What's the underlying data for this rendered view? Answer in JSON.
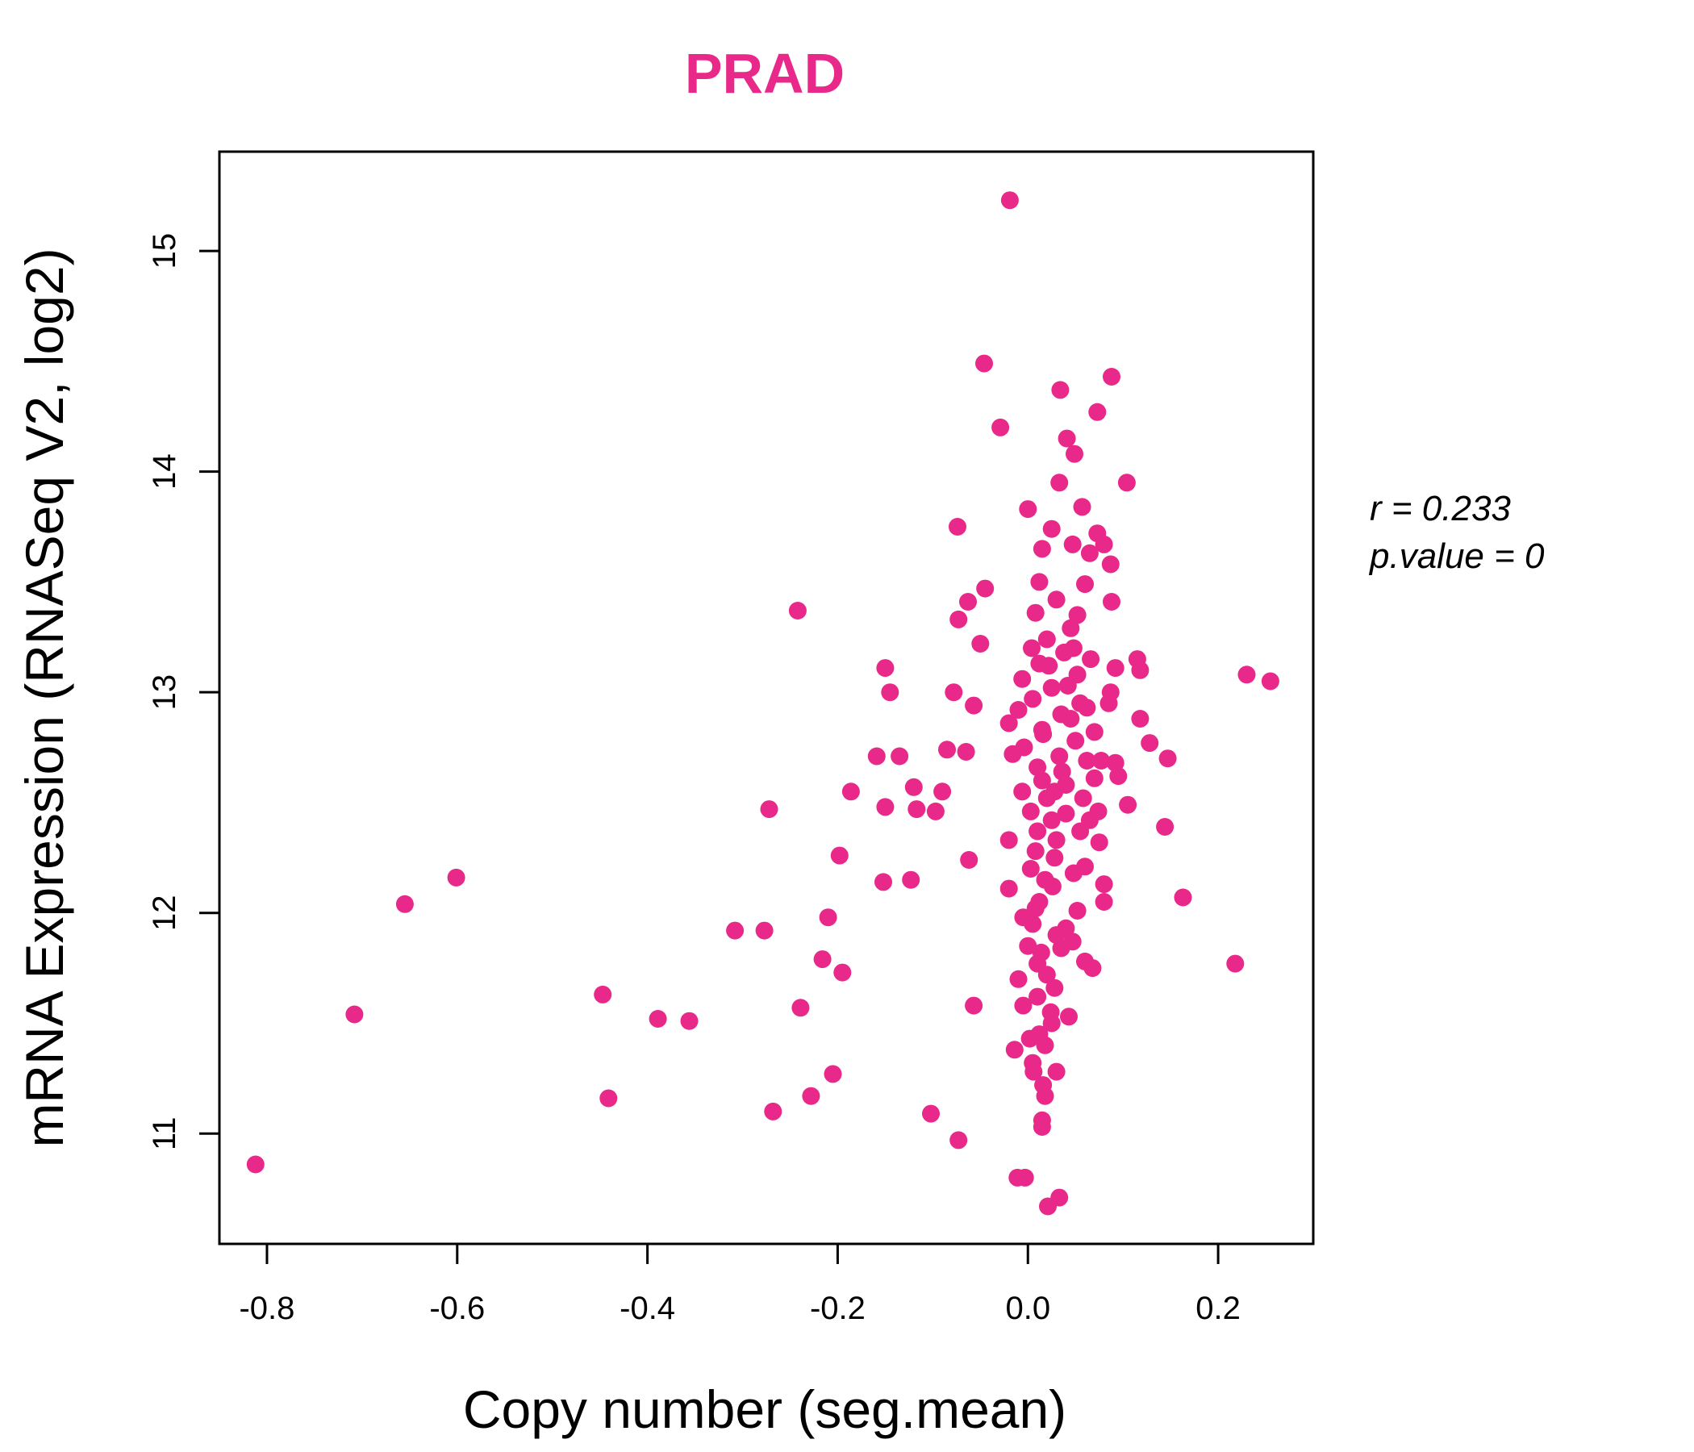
{
  "chart_data": {
    "type": "scatter",
    "title": "PRAD",
    "xlabel": "Copy number (seg.mean)",
    "ylabel": "mRNA Expression (RNASeq V2, log2)",
    "xlim": [
      -0.85,
      0.3
    ],
    "ylim": [
      10.5,
      15.45
    ],
    "x_ticks": [
      -0.8,
      -0.6,
      -0.4,
      -0.2,
      0.0,
      0.2
    ],
    "x_tick_labels": [
      "-0.8",
      "-0.6",
      "-0.4",
      "-0.2",
      "0.0",
      "0.2"
    ],
    "y_ticks": [
      11,
      12,
      13,
      14,
      15
    ],
    "y_tick_labels": [
      "11",
      "12",
      "13",
      "14",
      "15"
    ],
    "annotation": {
      "r_label": "r = 0.233",
      "p_label": "p.value = 0"
    },
    "point_color": "#E8298A",
    "title_color": "#E8298A",
    "points": [
      [
        -0.019,
        15.23
      ],
      [
        -0.046,
        14.49
      ],
      [
        0.088,
        14.43
      ],
      [
        0.034,
        14.37
      ],
      [
        -0.029,
        14.2
      ],
      [
        0.073,
        14.27
      ],
      [
        0.041,
        14.15
      ],
      [
        0.049,
        14.08
      ],
      [
        0.033,
        13.95
      ],
      [
        0.104,
        13.95
      ],
      [
        0.0,
        13.83
      ],
      [
        0.057,
        13.84
      ],
      [
        -0.074,
        13.75
      ],
      [
        0.025,
        13.74
      ],
      [
        0.073,
        13.72
      ],
      [
        0.047,
        13.67
      ],
      [
        0.08,
        13.67
      ],
      [
        0.015,
        13.65
      ],
      [
        0.065,
        13.63
      ],
      [
        0.087,
        13.58
      ],
      [
        -0.242,
        13.37
      ],
      [
        -0.045,
        13.47
      ],
      [
        0.012,
        13.5
      ],
      [
        0.06,
        13.49
      ],
      [
        -0.063,
        13.41
      ],
      [
        0.088,
        13.41
      ],
      [
        -0.073,
        13.33
      ],
      [
        0.052,
        13.35
      ],
      [
        -0.05,
        13.22
      ],
      [
        0.115,
        13.15
      ],
      [
        0.23,
        13.08
      ],
      [
        0.255,
        13.05
      ],
      [
        0.118,
        13.1
      ],
      [
        -0.15,
        13.11
      ],
      [
        -0.145,
        13.0
      ],
      [
        -0.078,
        13.0
      ],
      [
        -0.057,
        12.94
      ],
      [
        0.092,
        13.11
      ],
      [
        0.087,
        13.0
      ],
      [
        0.118,
        12.88
      ],
      [
        0.128,
        12.77
      ],
      [
        0.147,
        12.7
      ],
      [
        -0.159,
        12.71
      ],
      [
        -0.135,
        12.71
      ],
      [
        -0.085,
        12.74
      ],
      [
        -0.065,
        12.73
      ],
      [
        0.077,
        12.69
      ],
      [
        0.092,
        12.68
      ],
      [
        -0.186,
        12.55
      ],
      [
        -0.12,
        12.57
      ],
      [
        -0.09,
        12.55
      ],
      [
        -0.272,
        12.47
      ],
      [
        -0.15,
        12.48
      ],
      [
        -0.117,
        12.47
      ],
      [
        -0.097,
        12.46
      ],
      [
        0.105,
        12.49
      ],
      [
        0.144,
        12.39
      ],
      [
        -0.198,
        12.26
      ],
      [
        -0.062,
        12.24
      ],
      [
        0.08,
        12.13
      ],
      [
        -0.152,
        12.14
      ],
      [
        -0.123,
        12.15
      ],
      [
        0.163,
        12.07
      ],
      [
        -0.601,
        12.16
      ],
      [
        -0.655,
        12.04
      ],
      [
        -0.21,
        11.98
      ],
      [
        -0.308,
        11.92
      ],
      [
        -0.277,
        11.92
      ],
      [
        -0.216,
        11.79
      ],
      [
        -0.195,
        11.73
      ],
      [
        0.06,
        11.78
      ],
      [
        0.068,
        11.75
      ],
      [
        0.218,
        11.77
      ],
      [
        -0.447,
        11.63
      ],
      [
        -0.239,
        11.57
      ],
      [
        -0.057,
        11.58
      ],
      [
        -0.708,
        11.54
      ],
      [
        -0.389,
        11.52
      ],
      [
        -0.356,
        11.51
      ],
      [
        -0.005,
        11.58
      ],
      [
        0.043,
        11.53
      ],
      [
        0.025,
        11.5
      ],
      [
        -0.014,
        11.38
      ],
      [
        0.03,
        11.28
      ],
      [
        -0.205,
        11.27
      ],
      [
        -0.441,
        11.16
      ],
      [
        -0.228,
        11.17
      ],
      [
        -0.268,
        11.1
      ],
      [
        -0.102,
        11.09
      ],
      [
        0.015,
        11.06
      ],
      [
        0.015,
        11.03
      ],
      [
        -0.073,
        10.97
      ],
      [
        -0.812,
        10.86
      ],
      [
        -0.011,
        10.8
      ],
      [
        -0.003,
        10.8
      ],
      [
        0.033,
        10.71
      ],
      [
        0.021,
        10.67
      ],
      [
        0.005,
        11.32
      ],
      [
        0.016,
        11.22
      ],
      [
        0.002,
        11.43
      ],
      [
        0.018,
        11.4
      ],
      [
        0.01,
        11.62
      ],
      [
        -0.01,
        11.7
      ],
      [
        0.028,
        11.66
      ],
      [
        0.035,
        11.84
      ],
      [
        0.04,
        11.93
      ],
      [
        0.005,
        11.95
      ],
      [
        0.012,
        12.05
      ],
      [
        0.026,
        12.12
      ],
      [
        0.048,
        12.18
      ],
      [
        0.06,
        12.21
      ],
      [
        0.008,
        12.28
      ],
      [
        0.03,
        12.33
      ],
      [
        0.055,
        12.37
      ],
      [
        0.065,
        12.42
      ],
      [
        0.003,
        12.46
      ],
      [
        0.02,
        12.52
      ],
      [
        0.04,
        12.58
      ],
      [
        0.07,
        12.61
      ],
      [
        0.01,
        12.66
      ],
      [
        0.033,
        12.71
      ],
      [
        0.05,
        12.78
      ],
      [
        0.015,
        12.83
      ],
      [
        0.045,
        12.88
      ],
      [
        0.062,
        12.93
      ],
      [
        0.005,
        12.97
      ],
      [
        0.025,
        13.02
      ],
      [
        0.052,
        13.08
      ],
      [
        0.012,
        13.13
      ],
      [
        0.038,
        13.18
      ],
      [
        0.02,
        13.24
      ],
      [
        0.045,
        13.29
      ],
      [
        0.008,
        13.36
      ],
      [
        0.03,
        13.42
      ],
      [
        -0.006,
        13.06
      ],
      [
        -0.02,
        12.86
      ],
      [
        -0.016,
        12.72
      ],
      [
        -0.02,
        12.33
      ],
      [
        -0.02,
        12.11
      ],
      [
        -0.006,
        12.55
      ],
      [
        -0.01,
        12.92
      ],
      [
        0.075,
        12.32
      ],
      [
        0.08,
        12.05
      ],
      [
        0.07,
        12.82
      ],
      [
        0.085,
        12.95
      ],
      [
        0.095,
        12.62
      ],
      [
        0.074,
        12.46
      ],
      [
        0.052,
        12.01
      ],
      [
        0.047,
        11.87
      ],
      [
        0.01,
        11.77
      ],
      [
        0.0,
        11.85
      ],
      [
        -0.005,
        11.98
      ],
      [
        0.003,
        12.2
      ],
      [
        0.025,
        12.42
      ],
      [
        0.015,
        12.6
      ],
      [
        0.035,
        12.9
      ],
      [
        0.022,
        13.12
      ],
      [
        0.048,
        13.2
      ],
      [
        0.01,
        12.37
      ],
      [
        0.028,
        12.25
      ],
      [
        0.018,
        12.15
      ],
      [
        0.008,
        12.02
      ],
      [
        0.03,
        11.9
      ],
      [
        0.014,
        11.82
      ],
      [
        0.02,
        11.72
      ],
      [
        0.024,
        11.55
      ],
      [
        0.012,
        11.45
      ],
      [
        0.006,
        11.28
      ],
      [
        0.018,
        11.17
      ],
      [
        -0.004,
        12.75
      ],
      [
        0.058,
        12.52
      ],
      [
        0.062,
        12.69
      ],
      [
        0.04,
        12.45
      ],
      [
        0.036,
        12.64
      ],
      [
        0.028,
        12.55
      ],
      [
        0.016,
        12.81
      ],
      [
        0.004,
        13.2
      ],
      [
        0.042,
        13.03
      ],
      [
        0.055,
        12.95
      ],
      [
        0.066,
        13.15
      ]
    ]
  }
}
